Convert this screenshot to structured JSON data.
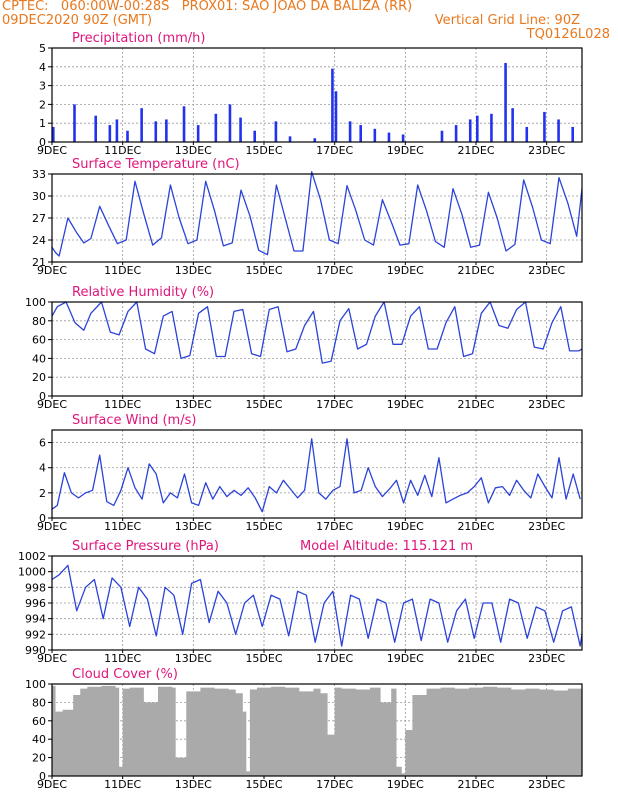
{
  "header": {
    "line1_left": "CPTEC:   060:00W-00:28S   PROX01: SAO JOAO DA BALIZA (RR)",
    "line2_left": "09DEC2020 90Z (GMT)",
    "line2_right": "Vertical Grid Line: 90Z",
    "line3_right": "TQ0126L028"
  },
  "colors": {
    "header_text": "#e8781e",
    "title_text": "#e0157a",
    "line_series": "#2b43d9",
    "bar_series": "#2233ee",
    "cloud_fill": "#aaaaaa",
    "grid": "#999999",
    "axis_text": "#000000"
  },
  "chart_data": [
    {
      "id": "precipitation",
      "type": "bar",
      "title": "Precipitation (mm/h)",
      "ylim": [
        0,
        5
      ],
      "yticks": [
        "0",
        "1",
        "2",
        "3",
        "4",
        "5"
      ],
      "xticks": [
        "9DEC",
        "11DEC",
        "13DEC",
        "15DEC",
        "17DEC",
        "19DEC",
        "21DEC",
        "23DEC"
      ],
      "x": [
        9.0,
        9.6,
        10.2,
        10.6,
        10.8,
        11.1,
        11.5,
        11.9,
        12.2,
        12.7,
        13.1,
        13.6,
        14.0,
        14.3,
        14.7,
        15.3,
        15.7,
        16.4,
        16.9,
        17.0,
        17.4,
        17.7,
        18.1,
        18.5,
        18.9,
        20.0,
        20.4,
        20.8,
        21.0,
        21.4,
        21.8,
        22.0,
        22.4,
        22.9,
        23.3,
        23.7
      ],
      "values": [
        0.8,
        2.0,
        1.4,
        0.9,
        1.2,
        0.6,
        1.8,
        1.1,
        1.2,
        1.9,
        0.9,
        1.5,
        2.0,
        1.3,
        0.6,
        1.1,
        0.3,
        0.2,
        3.9,
        2.7,
        1.1,
        0.9,
        0.7,
        0.5,
        0.4,
        0.6,
        0.9,
        1.2,
        1.4,
        1.5,
        4.2,
        1.8,
        0.8,
        1.6,
        1.2,
        0.8
      ]
    },
    {
      "id": "temperature",
      "type": "line",
      "title": "Surface Temperature (nC)",
      "ylim": [
        21,
        33
      ],
      "yticks": [
        "21",
        "24",
        "27",
        "30",
        "33"
      ],
      "xticks": [
        "9DEC",
        "11DEC",
        "13DEC",
        "15DEC",
        "17DEC",
        "19DEC",
        "21DEC",
        "23DEC"
      ],
      "x": [
        9.0,
        9.1,
        9.2,
        9.45,
        9.7,
        9.9,
        10.1,
        10.35,
        10.6,
        10.85,
        11.1,
        11.35,
        11.6,
        11.85,
        12.1,
        12.35,
        12.6,
        12.85,
        13.1,
        13.35,
        13.6,
        13.85,
        14.1,
        14.35,
        14.6,
        14.85,
        15.1,
        15.35,
        15.6,
        15.85,
        16.1,
        16.35,
        16.6,
        16.85,
        17.1,
        17.35,
        17.6,
        17.85,
        18.1,
        18.35,
        18.6,
        18.85,
        19.1,
        19.35,
        19.6,
        19.85,
        20.1,
        20.35,
        20.6,
        20.85,
        21.1,
        21.35,
        21.6,
        21.85,
        22.1,
        22.35,
        22.6,
        22.85,
        23.1,
        23.35,
        23.6,
        23.85,
        24.0
      ],
      "values": [
        23.0,
        22.3,
        21.8,
        27.0,
        25.0,
        23.6,
        24.2,
        28.6,
        26.0,
        23.5,
        24.0,
        32.0,
        27.5,
        23.3,
        24.3,
        31.5,
        27.0,
        23.5,
        24.0,
        32.0,
        28.0,
        23.2,
        23.6,
        30.8,
        27.3,
        22.6,
        22.0,
        31.5,
        27.0,
        22.5,
        22.5,
        33.3,
        29.5,
        24.0,
        23.5,
        31.4,
        28.0,
        24.0,
        23.3,
        29.5,
        26.5,
        23.3,
        23.5,
        31.5,
        28.0,
        23.8,
        23.0,
        31.0,
        27.5,
        23.0,
        23.3,
        30.5,
        27.0,
        22.5,
        23.4,
        32.2,
        28.5,
        24.0,
        23.5,
        32.5,
        29.0,
        24.5,
        31.0
      ]
    },
    {
      "id": "humidity",
      "type": "line",
      "title": "Relative Humidity (%)",
      "ylim": [
        0,
        100
      ],
      "yticks": [
        "0",
        "20",
        "40",
        "60",
        "80",
        "100"
      ],
      "xticks": [
        "9DEC",
        "11DEC",
        "13DEC",
        "15DEC",
        "17DEC",
        "19DEC",
        "21DEC",
        "23DEC"
      ],
      "x": [
        9.0,
        9.15,
        9.4,
        9.65,
        9.9,
        10.1,
        10.4,
        10.65,
        10.9,
        11.15,
        11.4,
        11.65,
        11.9,
        12.15,
        12.4,
        12.65,
        12.9,
        13.15,
        13.4,
        13.65,
        13.9,
        14.15,
        14.4,
        14.65,
        14.9,
        15.15,
        15.4,
        15.65,
        15.9,
        16.15,
        16.4,
        16.65,
        16.9,
        17.15,
        17.4,
        17.65,
        17.9,
        18.15,
        18.4,
        18.65,
        18.9,
        19.15,
        19.4,
        19.65,
        19.9,
        20.15,
        20.4,
        20.65,
        20.9,
        21.15,
        21.4,
        21.65,
        21.9,
        22.15,
        22.4,
        22.65,
        22.9,
        23.15,
        23.4,
        23.65,
        23.9,
        24.0
      ],
      "values": [
        85,
        95,
        100,
        78,
        70,
        88,
        100,
        68,
        65,
        90,
        100,
        50,
        45,
        85,
        90,
        40,
        43,
        88,
        95,
        42,
        42,
        90,
        92,
        45,
        42,
        92,
        95,
        47,
        50,
        75,
        90,
        35,
        37,
        80,
        93,
        50,
        55,
        85,
        100,
        55,
        55,
        85,
        95,
        50,
        50,
        78,
        95,
        42,
        45,
        88,
        100,
        75,
        72,
        92,
        100,
        52,
        50,
        78,
        95,
        48,
        48,
        50
      ]
    },
    {
      "id": "wind",
      "type": "line",
      "title": "Surface Wind (m/s)",
      "ylim": [
        0,
        7
      ],
      "yticks": [
        "0",
        "2",
        "4",
        "6"
      ],
      "xticks": [
        "9DEC",
        "11DEC",
        "13DEC",
        "15DEC",
        "17DEC",
        "19DEC",
        "21DEC",
        "23DEC"
      ],
      "x": [
        9.0,
        9.15,
        9.35,
        9.55,
        9.75,
        9.95,
        10.15,
        10.35,
        10.55,
        10.75,
        10.95,
        11.15,
        11.35,
        11.55,
        11.75,
        11.95,
        12.15,
        12.35,
        12.55,
        12.75,
        12.95,
        13.15,
        13.35,
        13.55,
        13.75,
        13.95,
        14.15,
        14.35,
        14.55,
        14.75,
        14.95,
        15.15,
        15.35,
        15.55,
        15.75,
        15.95,
        16.15,
        16.35,
        16.55,
        16.75,
        16.95,
        17.15,
        17.35,
        17.55,
        17.75,
        17.95,
        18.15,
        18.35,
        18.55,
        18.75,
        18.95,
        19.15,
        19.35,
        19.55,
        19.75,
        19.95,
        20.15,
        20.35,
        20.55,
        20.75,
        20.95,
        21.15,
        21.35,
        21.55,
        21.75,
        21.95,
        22.15,
        22.35,
        22.55,
        22.75,
        22.95,
        23.15,
        23.35,
        23.55,
        23.75,
        23.95
      ],
      "values": [
        0.7,
        1.0,
        3.6,
        2.0,
        1.6,
        2.0,
        2.2,
        5.0,
        1.3,
        1.0,
        2.2,
        4.0,
        2.4,
        1.5,
        4.3,
        3.5,
        1.2,
        2.0,
        1.6,
        3.5,
        1.2,
        1.0,
        2.8,
        1.5,
        2.5,
        1.7,
        2.2,
        1.8,
        2.4,
        1.6,
        0.5,
        2.5,
        2.0,
        3.0,
        2.3,
        1.6,
        2.2,
        6.3,
        2.0,
        1.5,
        2.2,
        2.5,
        6.3,
        2.0,
        2.2,
        4.0,
        2.5,
        1.7,
        2.3,
        3.0,
        1.2,
        3.0,
        1.8,
        3.4,
        1.7,
        4.8,
        1.2,
        1.5,
        1.8,
        2.0,
        2.5,
        3.2,
        1.2,
        2.4,
        2.5,
        1.8,
        3.0,
        2.2,
        1.6,
        3.5,
        2.5,
        1.6,
        4.8,
        1.5,
        3.5,
        1.5
      ]
    },
    {
      "id": "pressure",
      "type": "line",
      "title": "Surface Pressure (hPa)",
      "annotation": "Model Altitude: 115.121 m",
      "ylim": [
        990,
        1002
      ],
      "yticks": [
        "990",
        "992",
        "994",
        "996",
        "998",
        "1000",
        "1002"
      ],
      "xticks": [
        "9DEC",
        "11DEC",
        "13DEC",
        "15DEC",
        "17DEC",
        "19DEC",
        "21DEC",
        "23DEC"
      ],
      "x": [
        9.0,
        9.2,
        9.45,
        9.7,
        9.95,
        10.2,
        10.45,
        10.7,
        10.95,
        11.2,
        11.45,
        11.7,
        11.95,
        12.2,
        12.45,
        12.7,
        12.95,
        13.2,
        13.45,
        13.7,
        13.95,
        14.2,
        14.45,
        14.7,
        14.95,
        15.2,
        15.45,
        15.7,
        15.95,
        16.2,
        16.45,
        16.7,
        16.95,
        17.2,
        17.45,
        17.7,
        17.95,
        18.2,
        18.45,
        18.7,
        18.95,
        19.2,
        19.45,
        19.7,
        19.95,
        20.2,
        20.45,
        20.7,
        20.95,
        21.2,
        21.45,
        21.7,
        21.95,
        22.2,
        22.45,
        22.7,
        22.95,
        23.2,
        23.45,
        23.7,
        23.95,
        24.0
      ],
      "values": [
        999.0,
        999.6,
        1000.8,
        995.0,
        998.0,
        999.0,
        994.0,
        999.2,
        998.0,
        993.0,
        998.0,
        996.5,
        991.8,
        998.0,
        997.0,
        992.0,
        998.5,
        999.0,
        993.5,
        997.5,
        996.0,
        992.0,
        996.0,
        997.0,
        993.0,
        997.0,
        996.5,
        991.8,
        997.5,
        997.0,
        991.0,
        996.0,
        997.5,
        990.5,
        997.0,
        996.5,
        991.5,
        996.5,
        996.0,
        991.0,
        996.0,
        996.5,
        991.2,
        996.5,
        996.0,
        991.0,
        995.0,
        996.5,
        991.5,
        996.0,
        996.0,
        991.0,
        996.5,
        996.0,
        991.5,
        995.5,
        995.0,
        991.0,
        995.0,
        995.5,
        990.5,
        992.0
      ]
    },
    {
      "id": "cloud",
      "type": "area",
      "title": "Cloud Cover (%)",
      "ylim": [
        0,
        100
      ],
      "yticks": [
        "0",
        "20",
        "40",
        "60",
        "80",
        "100"
      ],
      "xticks": [
        "9DEC",
        "11DEC",
        "13DEC",
        "15DEC",
        "17DEC",
        "19DEC",
        "21DEC",
        "23DEC"
      ],
      "x": [
        9.0,
        9.1,
        9.3,
        9.6,
        9.8,
        10.0,
        10.4,
        10.8,
        10.9,
        11.0,
        11.2,
        11.6,
        12.0,
        12.4,
        12.5,
        12.8,
        13.2,
        13.6,
        14.0,
        14.2,
        14.4,
        14.5,
        14.6,
        14.8,
        15.2,
        15.6,
        16.0,
        16.4,
        16.6,
        16.8,
        17.0,
        17.2,
        17.6,
        18.0,
        18.3,
        18.6,
        18.75,
        18.9,
        19.0,
        19.2,
        19.6,
        20.0,
        20.4,
        20.8,
        21.2,
        21.6,
        22.0,
        22.4,
        22.8,
        23.2,
        23.6,
        24.0
      ],
      "values": [
        98,
        70,
        72,
        88,
        95,
        97,
        98,
        96,
        10,
        95,
        96,
        80,
        97,
        96,
        20,
        92,
        96,
        95,
        94,
        90,
        70,
        5,
        94,
        96,
        97,
        96,
        92,
        95,
        90,
        45,
        96,
        95,
        94,
        96,
        80,
        95,
        10,
        3,
        50,
        88,
        95,
        96,
        95,
        96,
        97,
        96,
        94,
        95,
        94,
        93,
        95,
        94
      ]
    }
  ]
}
